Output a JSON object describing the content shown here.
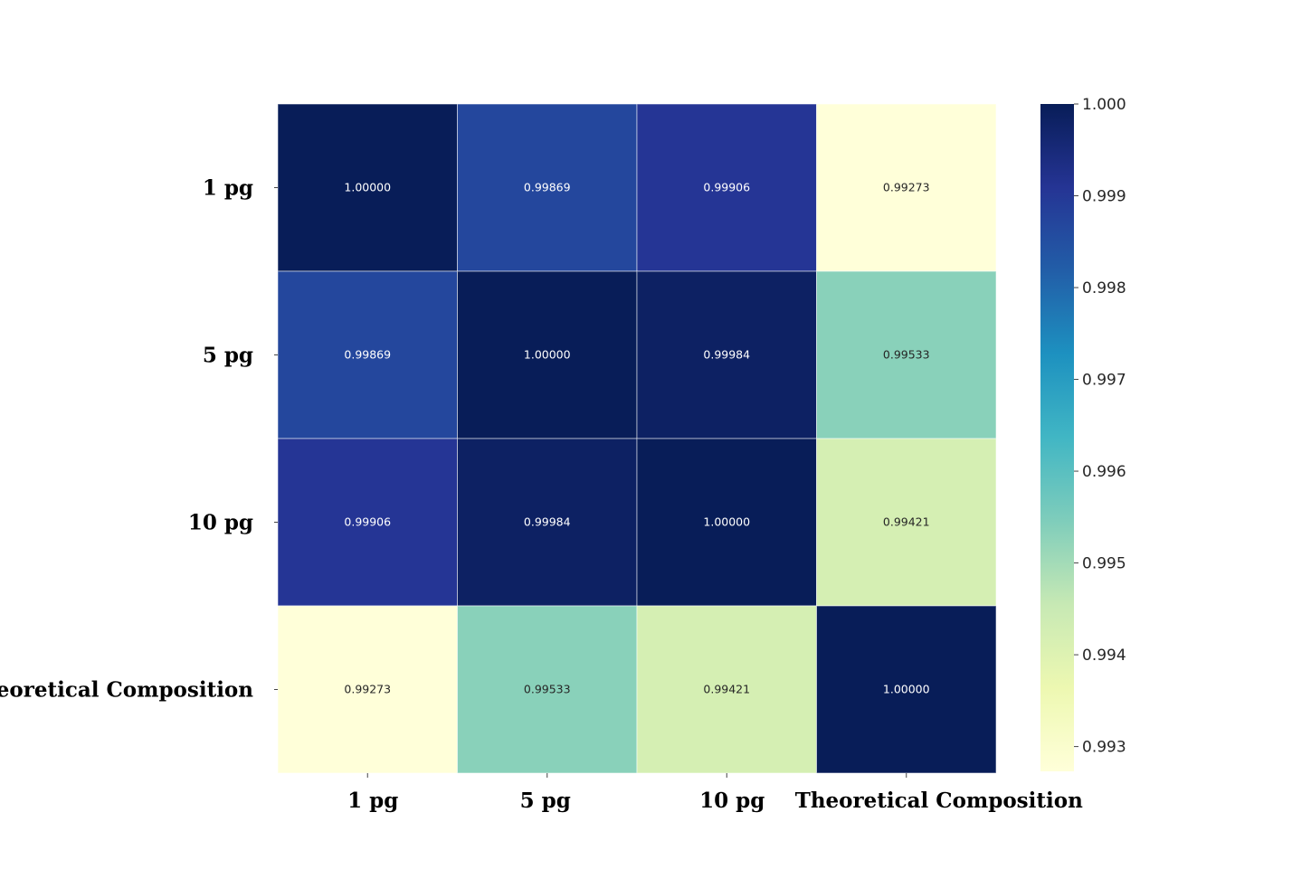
{
  "chart_data": {
    "type": "heatmap",
    "title": "",
    "xlabel": "",
    "ylabel": "",
    "row_labels": [
      "1 pg",
      "5 pg",
      "10 pg",
      "Theoretical Composition"
    ],
    "column_labels": [
      "1 pg",
      "5 pg",
      "10 pg",
      "Theoretical Composition"
    ],
    "values": [
      [
        1.0,
        0.99869,
        0.99906,
        0.99273
      ],
      [
        0.99869,
        1.0,
        0.99984,
        0.99533
      ],
      [
        0.99906,
        0.99984,
        1.0,
        0.99421
      ],
      [
        0.99273,
        0.99533,
        0.99421,
        1.0
      ]
    ],
    "value_format_decimals": 5,
    "colorbar": {
      "range": [
        0.99273,
        1.0
      ],
      "ticks": [
        0.993,
        0.994,
        0.995,
        0.996,
        0.997,
        0.998,
        0.999,
        1.0
      ],
      "tick_labels": [
        "0.993",
        "0.994",
        "0.995",
        "0.996",
        "0.997",
        "0.998",
        "0.999",
        "1.000"
      ]
    },
    "colormap": "YlGnBu",
    "colormap_stops": [
      "#ffffd9",
      "#edf8b1",
      "#c7e9b4",
      "#7fcdbb",
      "#41b6c4",
      "#1d91c0",
      "#225ea8",
      "#253494",
      "#081d58"
    ],
    "legend": "colorbar-right"
  }
}
